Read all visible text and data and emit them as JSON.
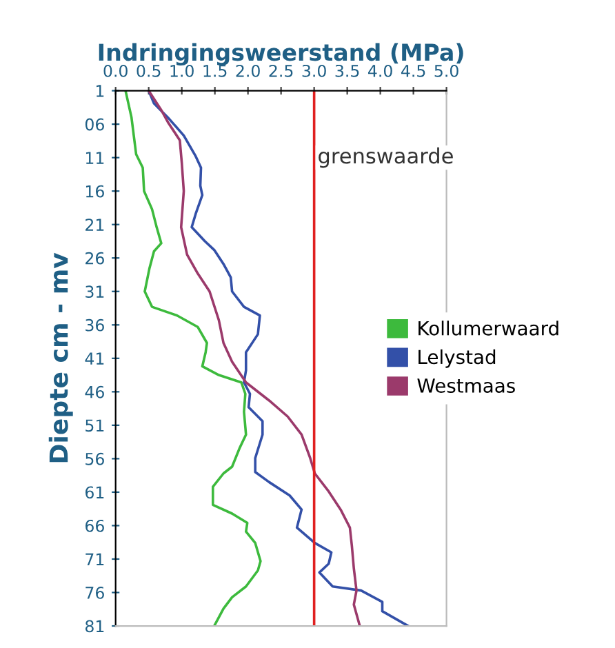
{
  "chart_data": {
    "type": "line",
    "xlabel": "Indringingsweerstand (MPa)",
    "ylabel": "Diepte cm - mv",
    "xlim": [
      0,
      5
    ],
    "xticks": [
      {
        "value": 0,
        "label": "0.0"
      },
      {
        "value": 0.5,
        "label": "0.5"
      },
      {
        "value": 1,
        "label": "1.0"
      },
      {
        "value": 1.5,
        "label": "1.5"
      },
      {
        "value": 2,
        "label": "2.0"
      },
      {
        "value": 2.5,
        "label": "2.5"
      },
      {
        "value": 3,
        "label": "3.0"
      },
      {
        "value": 3.5,
        "label": "3.5"
      },
      {
        "value": 4,
        "label": "4.0"
      },
      {
        "value": 4.5,
        "label": "4.5"
      },
      {
        "value": 5,
        "label": "5.0"
      }
    ],
    "ylim": [
      81,
      1
    ],
    "yticks": [
      1,
      {
        "value": 6,
        "label": "06"
      },
      11,
      16,
      21,
      26,
      31,
      36,
      41,
      46,
      51,
      56,
      61,
      66,
      71,
      76,
      81
    ],
    "grid": false,
    "legend": "right",
    "line_style": "solid",
    "marker": "none",
    "ref_lines": [
      {
        "axis": "x",
        "value": 3,
        "label": "grenswaarde",
        "color": "#e02020"
      }
    ],
    "series": [
      {
        "name": "Kollumerwaard",
        "color": "#3dba3d",
        "x": [
          0.15,
          0.24,
          0.31,
          0.41,
          0.43,
          0.55,
          0.62,
          0.69,
          0.58,
          0.51,
          0.44,
          0.55,
          0.93,
          1.24,
          1.38,
          1.36,
          1.31,
          1.56,
          1.9,
          1.96,
          1.94,
          1.97,
          1.87,
          1.76,
          1.63,
          1.47,
          1.47,
          1.76,
          1.99,
          1.97,
          2.11,
          2.19,
          2.15,
          1.97,
          1.76,
          1.63,
          1.49
        ],
        "values": [
          1,
          5,
          10.5,
          12.5,
          16,
          18.7,
          21.4,
          23.8,
          25,
          27.6,
          31,
          33.3,
          34.6,
          36.3,
          38.7,
          40.1,
          42.2,
          43.5,
          44.6,
          46.3,
          49,
          52.4,
          54.5,
          57.2,
          58.2,
          60.2,
          62.9,
          64.2,
          65.6,
          66.9,
          68.6,
          71.3,
          72.7,
          75.1,
          76.7,
          78.4,
          81
        ]
      },
      {
        "name": "Lelystad",
        "color": "#3350a8",
        "x": [
          0.5,
          0.58,
          0.79,
          1.03,
          1.21,
          1.29,
          1.28,
          1.31,
          1.21,
          1.15,
          1.35,
          1.49,
          1.63,
          1.74,
          1.76,
          1.94,
          2.18,
          2.15,
          1.97,
          1.97,
          1.94,
          2.03,
          2.01,
          2.22,
          2.22,
          2.11,
          2.11,
          2.32,
          2.63,
          2.81,
          2.74,
          3.01,
          3.26,
          3.22,
          3.08,
          3.28,
          3.71,
          4.03,
          4.03,
          4.42
        ],
        "values": [
          1,
          2.9,
          5,
          7.7,
          10.8,
          12.5,
          15.2,
          16.6,
          19.4,
          21.4,
          23.5,
          24.8,
          26.9,
          28.9,
          31,
          33.3,
          34.6,
          37.4,
          40.1,
          42.8,
          44.6,
          46.3,
          48.3,
          50.4,
          52.4,
          55.9,
          58,
          59.5,
          61.5,
          63.6,
          66.3,
          68.6,
          70,
          71.7,
          73,
          75.1,
          75.7,
          77.4,
          78.8,
          81
        ]
      },
      {
        "name": "Westmaas",
        "color": "#9b3a6b",
        "x": [
          0.5,
          0.69,
          0.79,
          0.97,
          1.0,
          1.03,
          0.99,
          1.08,
          1.24,
          1.42,
          1.56,
          1.63,
          1.76,
          1.97,
          2.32,
          2.6,
          2.81,
          2.94,
          3.01,
          3.22,
          3.4,
          3.54,
          3.57,
          3.6,
          3.64,
          3.6,
          3.69
        ],
        "values": [
          1,
          3.9,
          5.7,
          8.4,
          11.8,
          16,
          21.4,
          25.5,
          28.3,
          31,
          35.3,
          38.7,
          41.5,
          44.6,
          47.3,
          49.7,
          52.4,
          55.9,
          58.2,
          60.9,
          63.6,
          66.3,
          69,
          72.4,
          75.7,
          77.8,
          81
        ]
      }
    ]
  }
}
